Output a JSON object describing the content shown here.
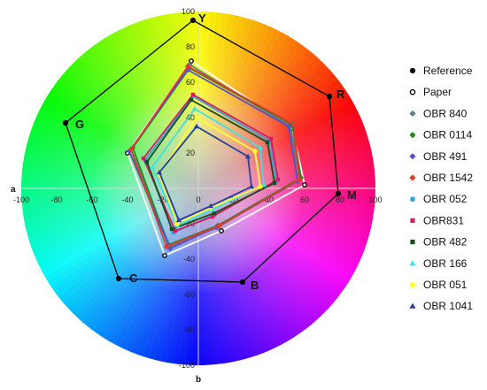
{
  "chart_data": {
    "type": "radar",
    "xlabel": "a",
    "ylabel": "b",
    "xlim": [
      -100,
      100
    ],
    "ylim": [
      -100,
      100
    ],
    "x_ticks": [
      "-100",
      "-80",
      "-60",
      "-40",
      "-20",
      "0",
      "20",
      "40",
      "60",
      "80",
      "100"
    ],
    "y_ticks": [
      "100",
      "80",
      "60",
      "40",
      "20",
      "0",
      "-20",
      "-40",
      "-60",
      "-80",
      "-100"
    ],
    "vertex_labels": [
      {
        "label": "Y",
        "a": -3,
        "b": 95
      },
      {
        "label": "R",
        "a": 74,
        "b": 52
      },
      {
        "label": "M",
        "a": 79,
        "b": -3
      },
      {
        "label": "B",
        "a": 25,
        "b": -53
      },
      {
        "label": "C",
        "a": -45,
        "b": -51
      },
      {
        "label": "G",
        "a": -75,
        "b": 37
      }
    ],
    "series": [
      {
        "name": "Reference",
        "color": "#000000",
        "marker": "circle",
        "points": [
          [
            -3,
            95
          ],
          [
            74,
            52
          ],
          [
            79,
            -3
          ],
          [
            25,
            -53
          ],
          [
            -45,
            -51
          ],
          [
            -75,
            37
          ]
        ]
      },
      {
        "name": "Paper",
        "color": "#ffffff",
        "marker": "circle-open",
        "points": [
          [
            -4,
            72
          ],
          [
            53,
            34
          ],
          [
            60,
            2
          ],
          [
            13,
            -24
          ],
          [
            -19,
            -38
          ],
          [
            -40,
            20
          ]
        ]
      },
      {
        "name": "OBR 840",
        "color": "#607d8b",
        "marker": "diamond",
        "points": [
          [
            -5,
            70
          ],
          [
            52,
            35
          ],
          [
            57,
            5
          ],
          [
            11,
            -22
          ],
          [
            -16,
            -33
          ],
          [
            -38,
            22
          ]
        ]
      },
      {
        "name": "OBR 0114",
        "color": "#1f8a1f",
        "marker": "diamond",
        "points": [
          [
            -5,
            68
          ],
          [
            53,
            36
          ],
          [
            58,
            6
          ],
          [
            11,
            -21
          ],
          [
            -17,
            -32
          ],
          [
            -37,
            23
          ]
        ]
      },
      {
        "name": "OBR 491",
        "color": "#5b4fc4",
        "marker": "diamond",
        "points": [
          [
            -6,
            67
          ],
          [
            51,
            35
          ],
          [
            56,
            4
          ],
          [
            10,
            -22
          ],
          [
            -16,
            -34
          ],
          [
            -39,
            21
          ]
        ]
      },
      {
        "name": "OBR 1542",
        "color": "#e23b2e",
        "marker": "diamond",
        "points": [
          [
            -6,
            69
          ],
          [
            54,
            36
          ],
          [
            57,
            5
          ],
          [
            12,
            -21
          ],
          [
            -18,
            -33
          ],
          [
            -38,
            22
          ]
        ]
      },
      {
        "name": "OBR 052",
        "color": "#2aa7d8",
        "marker": "square",
        "points": [
          [
            -3,
            52
          ],
          [
            40,
            27
          ],
          [
            44,
            4
          ],
          [
            9,
            -15
          ],
          [
            -14,
            -25
          ],
          [
            -30,
            16
          ]
        ]
      },
      {
        "name": "OBR831",
        "color": "#d81b60",
        "marker": "square",
        "points": [
          [
            -3,
            53
          ],
          [
            41,
            28
          ],
          [
            45,
            5
          ],
          [
            8,
            -16
          ],
          [
            -13,
            -24
          ],
          [
            -31,
            17
          ]
        ]
      },
      {
        "name": "OBR 482",
        "color": "#1b4d1b",
        "marker": "square",
        "points": [
          [
            -4,
            50
          ],
          [
            39,
            26
          ],
          [
            43,
            3
          ],
          [
            9,
            -14
          ],
          [
            -15,
            -23
          ],
          [
            -29,
            15
          ]
        ]
      },
      {
        "name": "OBR 166",
        "color": "#40e0e0",
        "marker": "triangle",
        "points": [
          [
            -2,
            45
          ],
          [
            35,
            23
          ],
          [
            37,
            2
          ],
          [
            8,
            -12
          ],
          [
            -12,
            -21
          ],
          [
            -26,
            12
          ]
        ]
      },
      {
        "name": "OBR 051",
        "color": "#ffff33",
        "marker": "circle",
        "points": [
          [
            -1,
            40
          ],
          [
            32,
            21
          ],
          [
            35,
            1
          ],
          [
            7,
            -11
          ],
          [
            -12,
            -20
          ],
          [
            -22,
            8
          ]
        ]
      },
      {
        "name": "OBR 1041",
        "color": "#2a3f9a",
        "marker": "triangle",
        "points": [
          [
            -1,
            35
          ],
          [
            28,
            18
          ],
          [
            30,
            1
          ],
          [
            7,
            -10
          ],
          [
            -11,
            -18
          ],
          [
            -22,
            9
          ]
        ]
      }
    ]
  }
}
